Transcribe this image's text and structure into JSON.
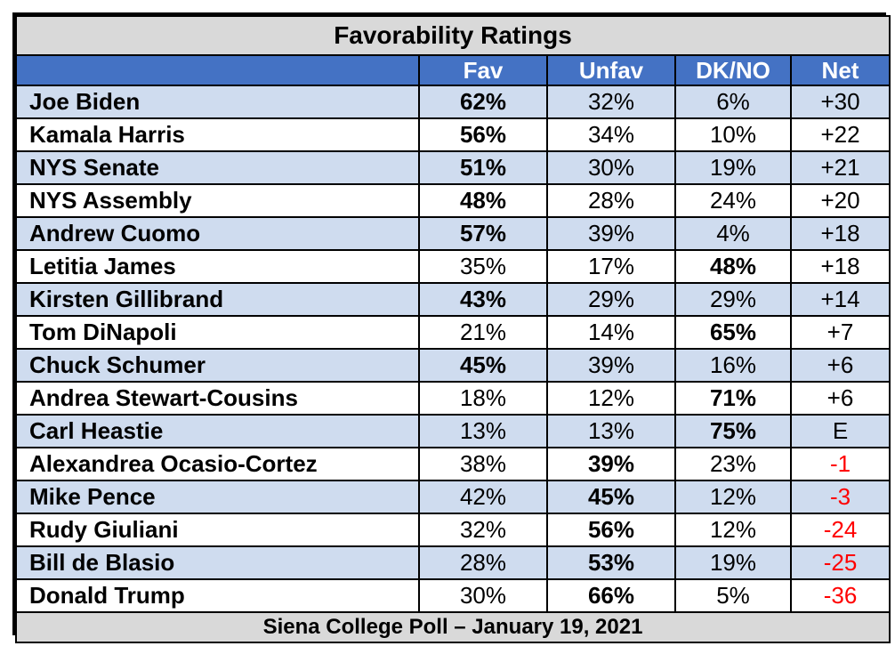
{
  "title": "Favorability Ratings",
  "footer": "Siena College Poll – January 19, 2021",
  "chart_data": {
    "type": "table",
    "title": "Favorability Ratings",
    "columns": [
      "",
      "Fav",
      "Unfav",
      "DK/NO",
      "Net"
    ],
    "rows": [
      {
        "name": "Joe Biden",
        "fav": "62%",
        "unfav": "32%",
        "dkno": "6%",
        "net": "+30",
        "bold": "fav"
      },
      {
        "name": "Kamala Harris",
        "fav": "56%",
        "unfav": "34%",
        "dkno": "10%",
        "net": "+22",
        "bold": "fav"
      },
      {
        "name": "NYS Senate",
        "fav": "51%",
        "unfav": "30%",
        "dkno": "19%",
        "net": "+21",
        "bold": "fav"
      },
      {
        "name": "NYS Assembly",
        "fav": "48%",
        "unfav": "28%",
        "dkno": "24%",
        "net": "+20",
        "bold": "fav"
      },
      {
        "name": "Andrew Cuomo",
        "fav": "57%",
        "unfav": "39%",
        "dkno": "4%",
        "net": "+18",
        "bold": "fav"
      },
      {
        "name": "Letitia James",
        "fav": "35%",
        "unfav": "17%",
        "dkno": "48%",
        "net": "+18",
        "bold": "dkno"
      },
      {
        "name": "Kirsten Gillibrand",
        "fav": "43%",
        "unfav": "29%",
        "dkno": "29%",
        "net": "+14",
        "bold": "fav"
      },
      {
        "name": "Tom DiNapoli",
        "fav": "21%",
        "unfav": "14%",
        "dkno": "65%",
        "net": "+7",
        "bold": "dkno"
      },
      {
        "name": "Chuck Schumer",
        "fav": "45%",
        "unfav": "39%",
        "dkno": "16%",
        "net": "+6",
        "bold": "fav"
      },
      {
        "name": "Andrea Stewart-Cousins",
        "fav": "18%",
        "unfav": "12%",
        "dkno": "71%",
        "net": "+6",
        "bold": "dkno"
      },
      {
        "name": "Carl Heastie",
        "fav": "13%",
        "unfav": "13%",
        "dkno": "75%",
        "net": "E",
        "bold": "dkno"
      },
      {
        "name": "Alexandrea Ocasio-Cortez",
        "fav": "38%",
        "unfav": "39%",
        "dkno": "23%",
        "net": "-1",
        "bold": "unfav"
      },
      {
        "name": "Mike Pence",
        "fav": "42%",
        "unfav": "45%",
        "dkno": "12%",
        "net": "-3",
        "bold": "unfav"
      },
      {
        "name": "Rudy Giuliani",
        "fav": "32%",
        "unfav": "56%",
        "dkno": "12%",
        "net": "-24",
        "bold": "unfav"
      },
      {
        "name": "Bill de Blasio",
        "fav": "28%",
        "unfav": "53%",
        "dkno": "19%",
        "net": "-25",
        "bold": "unfav"
      },
      {
        "name": "Donald Trump",
        "fav": "30%",
        "unfav": "66%",
        "dkno": "5%",
        "net": "-36",
        "bold": "unfav"
      }
    ],
    "colors": {
      "header": "#4472c4",
      "shaded_row": "#cfdcef",
      "title_bar": "#d9d9d9",
      "negative_net": "#ff0000"
    }
  }
}
